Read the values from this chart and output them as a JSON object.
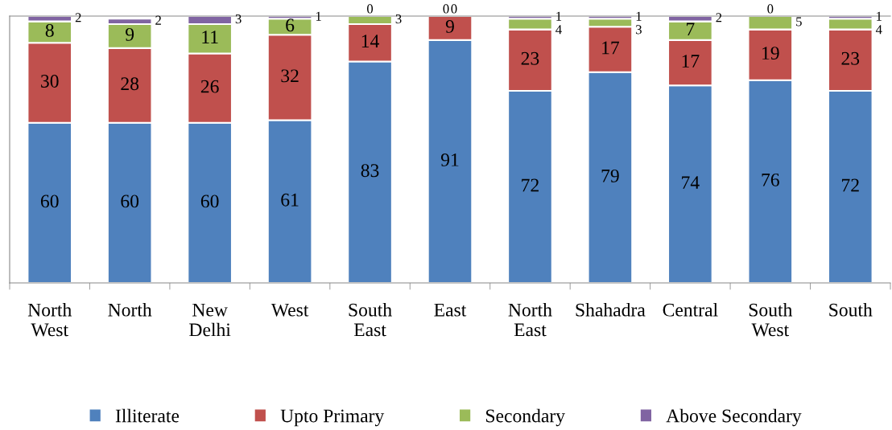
{
  "chart_data": {
    "type": "bar",
    "stacked": true,
    "data_labels": true,
    "legend": "bottom",
    "tick_labels": "x",
    "ylim": [
      0,
      100
    ],
    "categories": [
      "North\nWest",
      "North",
      "New\nDelhi",
      "West",
      "South\nEast",
      "East",
      "North\nEast",
      "Shahadra",
      "Central",
      "South\nWest",
      "South"
    ],
    "series": [
      {
        "name": "Illiterate",
        "color": "#4f81bd",
        "values": [
          60,
          60,
          60,
          61,
          83,
          91,
          72,
          79,
          74,
          76,
          72
        ]
      },
      {
        "name": "Upto Primary",
        "color": "#c0504d",
        "values": [
          30,
          28,
          26,
          32,
          14,
          9,
          23,
          17,
          17,
          19,
          23
        ]
      },
      {
        "name": "Secondary",
        "color": "#9bbb59",
        "values": [
          8,
          9,
          11,
          6,
          3,
          0,
          4,
          3,
          7,
          5,
          4
        ]
      },
      {
        "name": "Above Secondary",
        "color": "#8064a2",
        "values": [
          2,
          2,
          3,
          1,
          0,
          0,
          1,
          1,
          2,
          0,
          1
        ]
      }
    ]
  }
}
